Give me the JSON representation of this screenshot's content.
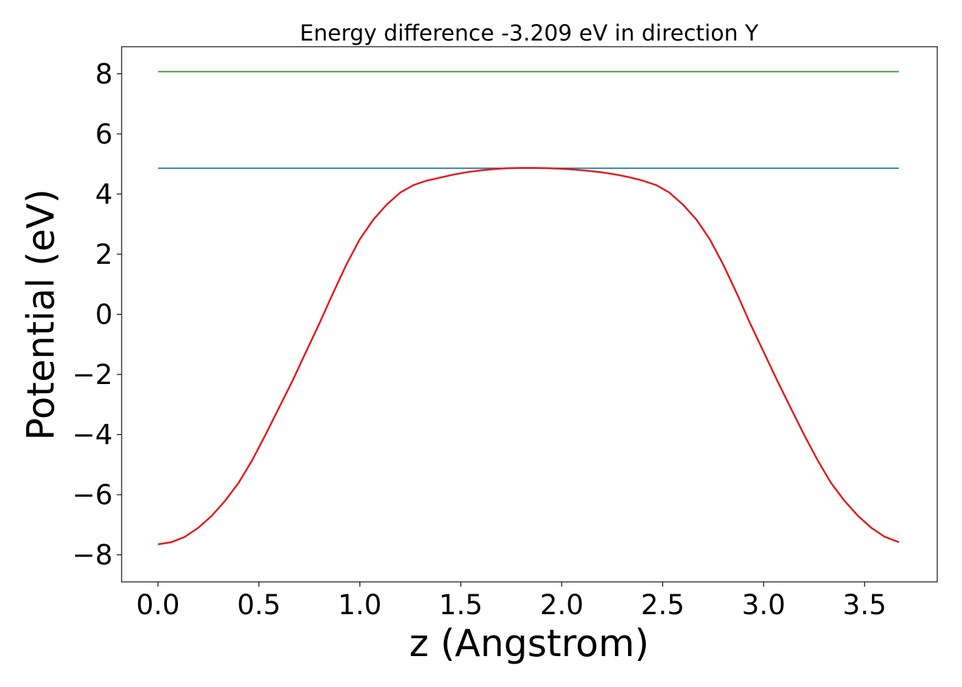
{
  "chart_data": {
    "type": "line",
    "title": "Energy difference -3.209 eV in direction Y",
    "xlabel": "z (Angstrom)",
    "ylabel": "Potential (eV)",
    "xlim": [
      -0.18,
      3.86
    ],
    "ylim": [
      -8.9,
      8.9
    ],
    "xticks": [
      0.0,
      0.5,
      1.0,
      1.5,
      2.0,
      2.5,
      3.0,
      3.5
    ],
    "xtick_labels": [
      "0.0",
      "0.5",
      "1.0",
      "1.5",
      "2.0",
      "2.5",
      "3.0",
      "3.5"
    ],
    "yticks": [
      -8,
      -6,
      -4,
      -2,
      0,
      2,
      4,
      6,
      8
    ],
    "ytick_labels": [
      "−8",
      "−6",
      "−4",
      "−2",
      "0",
      "2",
      "4",
      "6",
      "8"
    ],
    "grid": false,
    "series": [
      {
        "color": "#2ca02c",
        "x": [
          0.0,
          3.67
        ],
        "y": [
          8.07,
          8.07
        ]
      },
      {
        "color": "#1f77b4",
        "x": [
          0.0,
          3.67
        ],
        "y": [
          4.86,
          4.86
        ]
      },
      {
        "color": "#e31a1c",
        "x": [
          0.0,
          0.067,
          0.133,
          0.2,
          0.267,
          0.333,
          0.4,
          0.467,
          0.533,
          0.6,
          0.667,
          0.733,
          0.8,
          0.867,
          0.933,
          1.0,
          1.067,
          1.133,
          1.2,
          1.267,
          1.333,
          1.4,
          1.467,
          1.533,
          1.6,
          1.667,
          1.733,
          1.8,
          1.867,
          1.933,
          2.0,
          2.067,
          2.133,
          2.2,
          2.267,
          2.333,
          2.4,
          2.467,
          2.533,
          2.6,
          2.667,
          2.733,
          2.8,
          2.867,
          2.933,
          3.0,
          3.067,
          3.133,
          3.2,
          3.267,
          3.333,
          3.4,
          3.467,
          3.533,
          3.6,
          3.67
        ],
        "y": [
          -7.65,
          -7.58,
          -7.4,
          -7.1,
          -6.7,
          -6.2,
          -5.6,
          -4.85,
          -4.0,
          -3.1,
          -2.2,
          -1.25,
          -0.3,
          0.7,
          1.65,
          2.5,
          3.15,
          3.65,
          4.05,
          4.3,
          4.45,
          4.55,
          4.65,
          4.73,
          4.79,
          4.83,
          4.86,
          4.87,
          4.87,
          4.86,
          4.84,
          4.81,
          4.77,
          4.72,
          4.65,
          4.56,
          4.45,
          4.3,
          4.05,
          3.65,
          3.15,
          2.5,
          1.65,
          0.7,
          -0.3,
          -1.25,
          -2.2,
          -3.1,
          -4.0,
          -4.85,
          -5.6,
          -6.2,
          -6.7,
          -7.1,
          -7.4,
          -7.58
        ]
      }
    ]
  }
}
